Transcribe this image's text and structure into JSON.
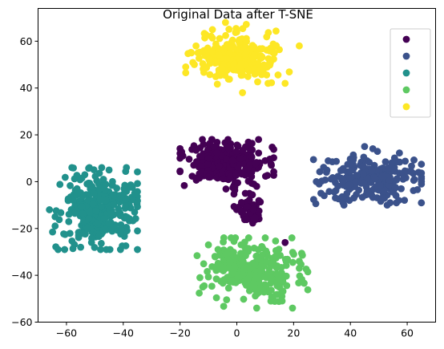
{
  "chart_data": {
    "type": "scatter",
    "title": "Original Data after T-SNE",
    "xlabel": "",
    "ylabel": "",
    "xlim": [
      -70,
      70
    ],
    "ylim": [
      -60,
      74
    ],
    "xticks": [
      -60,
      -40,
      -20,
      0,
      20,
      40,
      60
    ],
    "yticks": [
      -60,
      -40,
      -20,
      0,
      20,
      40,
      60
    ],
    "grid": false,
    "legend": {
      "placement": "top-right",
      "entries": [
        "",
        "",
        "",
        "",
        ""
      ]
    },
    "series": [
      {
        "color": "#440154",
        "clusters": [
          {
            "cx": -4,
            "cy": 8,
            "sx": 7.5,
            "sy": 4.5,
            "n": 260,
            "xmin": -20,
            "xmax": 13,
            "ymin": -4,
            "ymax": 18
          },
          {
            "cx": 4,
            "cy": -12,
            "sx": 2.5,
            "sy": 3.5,
            "n": 45,
            "xmin": -1,
            "xmax": 9,
            "ymin": -18,
            "ymax": -5
          }
        ],
        "points": [
          [
            6,
            -1
          ],
          [
            7,
            -2
          ],
          [
            3,
            -5
          ],
          [
            -8,
            15
          ],
          [
            -10,
            2
          ],
          [
            17,
            -26
          ],
          [
            -19,
            11
          ]
        ]
      },
      {
        "color": "#3b528b",
        "clusters": [
          {
            "cx": 47,
            "cy": 1,
            "sx": 9,
            "sy": 5,
            "n": 230,
            "xmin": 27,
            "xmax": 65,
            "ymin": -10,
            "ymax": 15
          }
        ],
        "points": [
          [
            45,
            15
          ],
          [
            29,
            -1
          ],
          [
            28,
            0
          ],
          [
            64,
            4
          ],
          [
            65,
            -1
          ],
          [
            57,
            -8
          ],
          [
            54,
            -9
          ]
        ]
      },
      {
        "color": "#21918c",
        "clusters": [
          {
            "cx": -49,
            "cy": -12,
            "sx": 6.5,
            "sy": 8,
            "n": 330,
            "xmin": -66,
            "xmax": -35,
            "ymin": -29,
            "ymax": 6
          }
        ],
        "points": [
          [
            -66,
            -12
          ],
          [
            -64,
            -15
          ],
          [
            -45,
            5
          ],
          [
            -55,
            -28
          ],
          [
            -48,
            -29
          ],
          [
            -36,
            -13
          ],
          [
            -36,
            -5
          ]
        ]
      },
      {
        "color": "#5ec962",
        "clusters": [
          {
            "cx": 6,
            "cy": -38,
            "sx": 8,
            "sy": 6,
            "n": 300,
            "xmin": -14,
            "xmax": 25,
            "ymin": -54,
            "ymax": -24
          }
        ],
        "points": [
          [
            -13,
            -41
          ],
          [
            -12,
            -45
          ],
          [
            22,
            -34
          ],
          [
            22,
            -37
          ],
          [
            7,
            -54
          ],
          [
            -10,
            -27
          ],
          [
            12,
            -51
          ]
        ]
      },
      {
        "color": "#fde725",
        "clusters": [
          {
            "cx": 0,
            "cy": 53,
            "sx": 7,
            "sy": 5,
            "n": 280,
            "xmin": -18,
            "xmax": 23,
            "ymin": 38,
            "ymax": 68
          }
        ],
        "points": [
          [
            -18,
            49
          ],
          [
            -16,
            55
          ],
          [
            22,
            58
          ],
          [
            17,
            42
          ],
          [
            11,
            42
          ],
          [
            -4,
            68
          ],
          [
            2,
            38
          ]
        ]
      }
    ]
  }
}
